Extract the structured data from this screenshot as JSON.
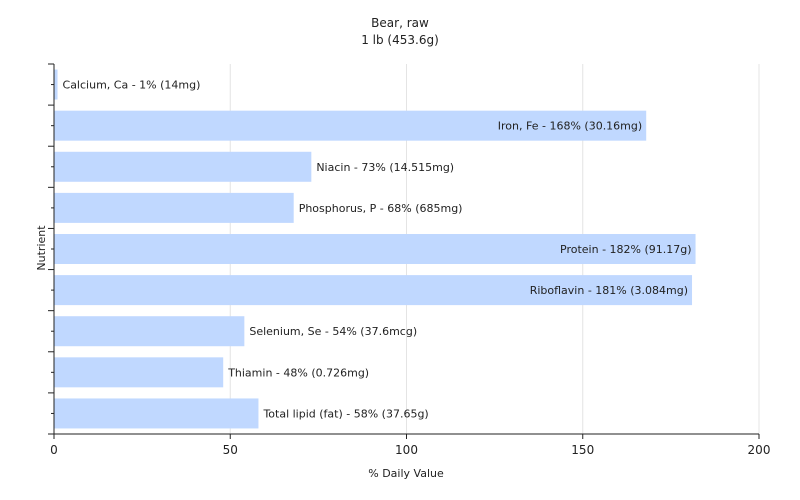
{
  "chart_data": {
    "type": "bar",
    "orientation": "horizontal",
    "title": "Bear, raw",
    "subtitle": "1 lb (453.6g)",
    "xlabel": "% Daily Value",
    "ylabel": "Nutrient",
    "xlim": [
      0,
      200
    ],
    "xticks": [
      0,
      50,
      100,
      150,
      200
    ],
    "grid": true,
    "bar_color": "#c0d8ff",
    "categories": [
      "Calcium, Ca",
      "Iron, Fe",
      "Niacin",
      "Phosphorus, P",
      "Protein",
      "Riboflavin",
      "Selenium, Se",
      "Thiamin",
      "Total lipid (fat)"
    ],
    "values": [
      1,
      168,
      73,
      68,
      182,
      181,
      54,
      48,
      58
    ],
    "labels": [
      "Calcium, Ca - 1% (14mg)",
      "Iron, Fe - 168% (30.16mg)",
      "Niacin - 73% (14.515mg)",
      "Phosphorus, P - 68% (685mg)",
      "Protein - 182% (91.17g)",
      "Riboflavin - 181% (3.084mg)",
      "Selenium, Se - 54% (37.6mcg)",
      "Thiamin - 48% (0.726mg)",
      "Total lipid (fat) - 58% (37.65g)"
    ],
    "label_inside": [
      false,
      true,
      false,
      false,
      true,
      true,
      false,
      false,
      false
    ]
  }
}
